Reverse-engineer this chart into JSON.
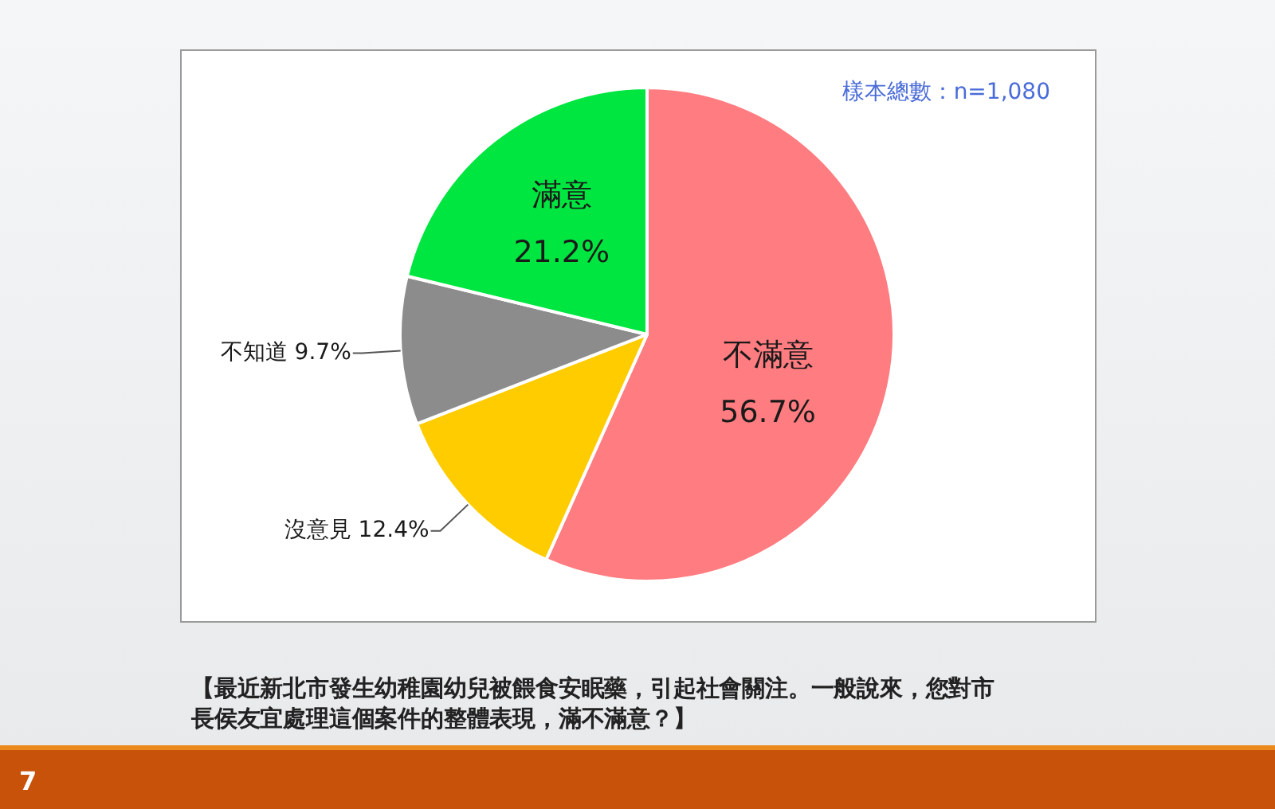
{
  "chart_data": {
    "type": "pie",
    "categories": [
      "不滿意",
      "沒意見",
      "不知道",
      "滿意"
    ],
    "values": [
      56.7,
      12.4,
      9.7,
      21.2
    ],
    "value_labels": [
      "56.7%",
      "12.4%",
      "9.7%",
      "21.2%"
    ],
    "colors": [
      "#ff7c80",
      "#ffcc00",
      "#8c8c8c",
      "#00e640"
    ],
    "annotations": [
      "樣本總數：n=1,080",
      "【最近新北市發生幼稚園幼兒被餵食安眠藥，引起社會關注。一般說來，您對市長侯友宜處理這個案件的整體表現，滿不滿意？】",
      "7"
    ]
  }
}
